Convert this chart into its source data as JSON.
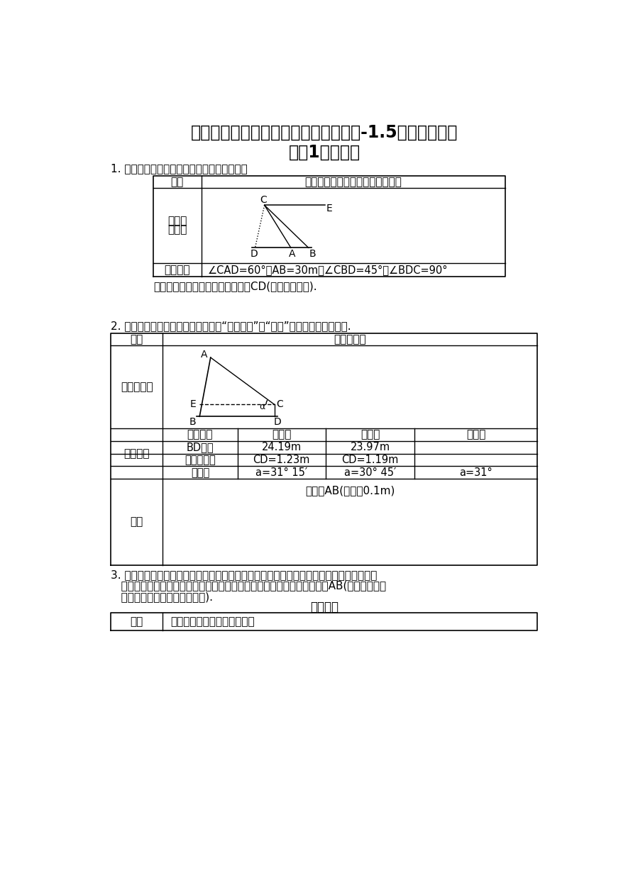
{
  "title_line1": "北师大版九年级数学下册课时同步练习-1.5测量物体的高",
  "title_line2": "度（1）附答案",
  "bg_color": "#ffffff",
  "text_color": "#000000",
  "q1_intro": "1. 下表是小明同学填写活动报告的部分内容：",
  "q1_table": {
    "col1_header": "课题",
    "col2_header": "在两岸近似平行的河段上测量河宽",
    "row2_col1_l1": "测量目",
    "row2_col1_l2": "标图示",
    "row3_col1": "测得数据",
    "row3_col2": "∠CAD=60°，AB=30m，∠CBD=45°，∠BDC=90°"
  },
  "q1_question": "请你根据以上的条件，计算出河宽CD(结果保留根号).",
  "q2_intro": "2. 下面是活动报告的一部分，请填写测得数据和计算两栏中未完成的部分.",
  "q2_intro_quotes": "2. 下面是活动报告的一部分，请填写“测得数据”和“计算”两栏中未完成的部分.",
  "q2_table": {
    "col1_header": "课题",
    "col2_header": "测量旗杆高",
    "row2_col1": "测量示意图",
    "row3_col1": "测得数据",
    "headers": [
      "测量项目",
      "第一次",
      "第二次",
      "平均值"
    ],
    "data_rows": [
      [
        "BD的长",
        "24.19m",
        "23.97m",
        ""
      ],
      [
        "测倾器的高",
        "CD=1.23m",
        "CD=1.19m",
        ""
      ],
      [
        "倾斜角",
        "a=31° 15′",
        "a=30° 45′",
        "a=31°"
      ]
    ],
    "row4_col1": "计算",
    "row4_col2": "旗杆高AB(精确到0.1m)"
  },
  "q3_intro1": "3. 学习完本节内容后，某校九年级数学老师布置一道利用测倾器测量学校旗杆高度的活动课",
  "q3_intro2": "   题，下表是小明同学填写的活动报告，请你根据有关测量数据，求旗杆高AB(计算过程填在",
  "q3_intro3": "   下表计算栏内，用计算器计算).",
  "q3_center": "活动报告",
  "q3_table": {
    "col1": "课题",
    "col2": "利用测倾器测量学校旗杆的高"
  }
}
